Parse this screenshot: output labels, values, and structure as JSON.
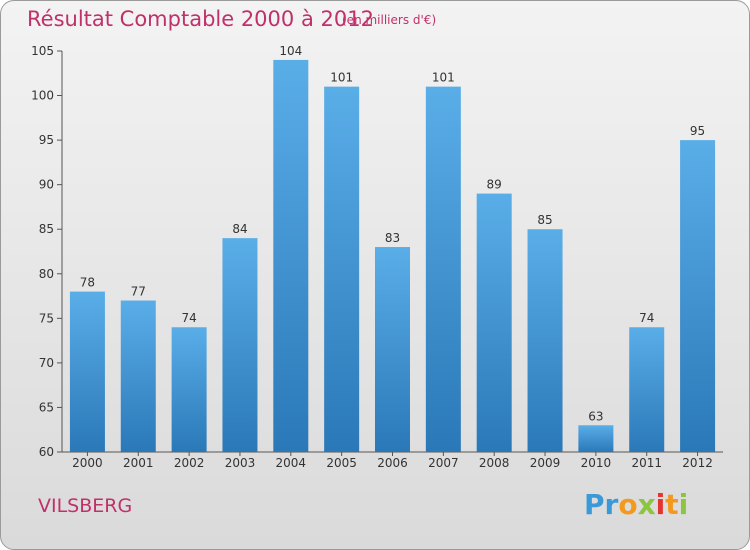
{
  "header": {
    "title": "Résultat Comptable 2000 à 2012",
    "subtitle": "(en milliers d'€)"
  },
  "footer": {
    "commune": "VILSBERG",
    "logo_letters": [
      {
        "char": "P",
        "color": "#3a9ad9"
      },
      {
        "char": "r",
        "color": "#3a9ad9"
      },
      {
        "char": "o",
        "color": "#f39a1e"
      },
      {
        "char": "x",
        "color": "#8cc63e"
      },
      {
        "char": "i",
        "color": "#e3342f"
      },
      {
        "char": "t",
        "color": "#f39a1e"
      },
      {
        "char": "i",
        "color": "#8cc63e"
      }
    ]
  },
  "colors": {
    "bar_top": "#5aaee8",
    "bar_bottom": "#2a78b8",
    "text": "#333333",
    "title": "#c0306a"
  },
  "chart_data": {
    "type": "bar",
    "title": "Résultat Comptable 2000 à 2012",
    "subtitle": "(en milliers d'€)",
    "xlabel": "",
    "ylabel": "",
    "categories": [
      "2000",
      "2001",
      "2002",
      "2003",
      "2004",
      "2005",
      "2006",
      "2007",
      "2008",
      "2009",
      "2010",
      "2011",
      "2012"
    ],
    "values": [
      78,
      77,
      74,
      84,
      104,
      101,
      83,
      101,
      89,
      85,
      63,
      74,
      95
    ],
    "ylim": [
      60,
      105
    ],
    "yticks": [
      60,
      65,
      70,
      75,
      80,
      85,
      90,
      95,
      100,
      105
    ],
    "grid": false,
    "data_labels": true
  }
}
